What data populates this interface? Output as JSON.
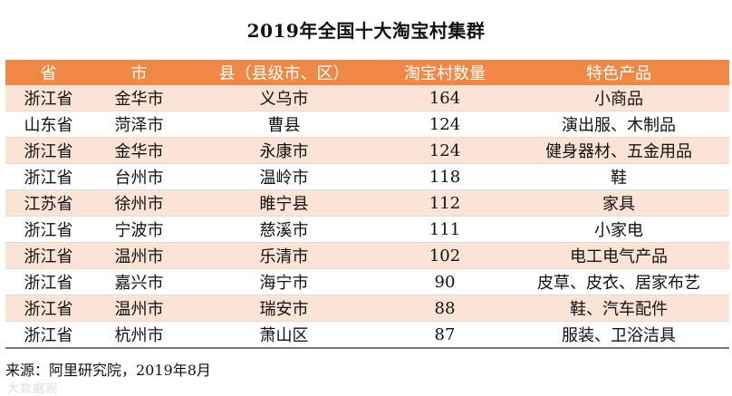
{
  "chart_data": {
    "type": "table",
    "title": "2019年全国十大淘宝村集群",
    "columns": [
      "省",
      "市",
      "县（县级市、区）",
      "淘宝村数量",
      "特色产品"
    ],
    "rows": [
      [
        "浙江省",
        "金华市",
        "义乌市",
        "164",
        "小商品"
      ],
      [
        "山东省",
        "菏泽市",
        "曹县",
        "124",
        "演出服、木制品"
      ],
      [
        "浙江省",
        "金华市",
        "永康市",
        "124",
        "健身器材、五金用品"
      ],
      [
        "浙江省",
        "台州市",
        "温岭市",
        "118",
        "鞋"
      ],
      [
        "江苏省",
        "徐州市",
        "睢宁县",
        "112",
        "家具"
      ],
      [
        "浙江省",
        "宁波市",
        "慈溪市",
        "111",
        "小家电"
      ],
      [
        "浙江省",
        "温州市",
        "乐清市",
        "102",
        "电工电气产品"
      ],
      [
        "浙江省",
        "嘉兴市",
        "海宁市",
        "90",
        "皮草、皮衣、居家布艺"
      ],
      [
        "浙江省",
        "温州市",
        "瑞安市",
        "88",
        "鞋、汽车配件"
      ],
      [
        "浙江省",
        "杭州市",
        "萧山区",
        "87",
        "服装、卫浴洁具"
      ]
    ],
    "source": "来源：阿里研究院，2019年8月"
  },
  "watermark": "大数据观"
}
